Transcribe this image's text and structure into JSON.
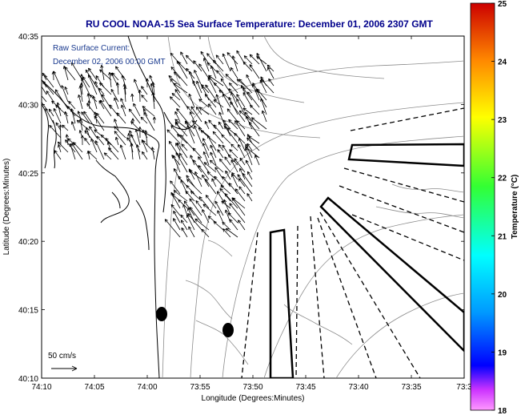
{
  "title": "RU COOL  NOAA-15  Sea Surface Temperature:  December 01, 2006 2307 GMT",
  "annotation": {
    "line1": "Raw Surface Current:",
    "line2": "December 02, 2006 00:00 GMT"
  },
  "scale_label": "50 cm/s",
  "colors": {
    "title": "#00008b",
    "annotation": "#1a3a8f",
    "coast": "#000000",
    "contour": "#8c8c8c",
    "vector": "#000000"
  },
  "chart_data": {
    "type": "map",
    "xlabel": "Longitude (Degrees:Minutes)",
    "ylabel": "Latitude (Degrees:Minutes)",
    "x_ticks": [
      "74:10",
      "74:05",
      "74:00",
      "73:55",
      "73:50",
      "73:45",
      "73:40",
      "73:35",
      "73:3"
    ],
    "y_ticks": [
      "40:35",
      "40:30",
      "40:25",
      "40:20",
      "40:15",
      "40:10"
    ],
    "colorbar": {
      "label": "Temperature (°C)",
      "ticks": [
        "25",
        "24",
        "23",
        "22",
        "21",
        "20",
        "19",
        "18"
      ],
      "range": [
        18,
        25
      ]
    },
    "vector_region_1_mean_uv": [
      -0.4,
      0.9
    ],
    "vector_region_2_mean_uv": [
      -0.55,
      0.75
    ]
  }
}
